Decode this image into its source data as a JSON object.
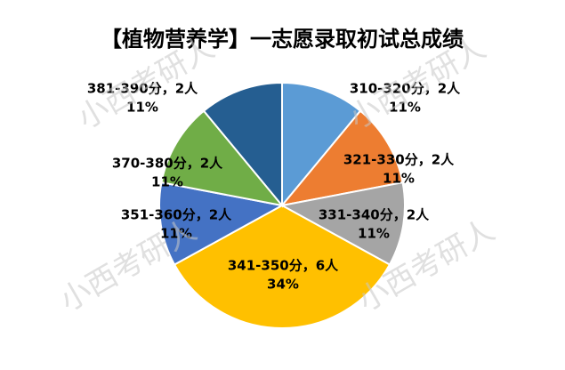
{
  "chart_data": {
    "type": "pie",
    "title": "【植物营养学】一志愿录取初试总成绩",
    "categories": [
      "310-320分，2人",
      "321-330分，2人",
      "331-340分，2人",
      "341-350分，6人",
      "351-360分，2人",
      "370-380分，2人",
      "381-390分，2人"
    ],
    "values": [
      11,
      11,
      11,
      34,
      11,
      11,
      11
    ],
    "value_labels": [
      "11%",
      "11%",
      "11%",
      "34%",
      "11%",
      "11%",
      "11%"
    ],
    "colors": [
      "#5b9bd5",
      "#ed7d31",
      "#a5a5a5",
      "#ffc000",
      "#4472c4",
      "#70ad47",
      "#255e91"
    ],
    "watermark": "小西考研人"
  }
}
